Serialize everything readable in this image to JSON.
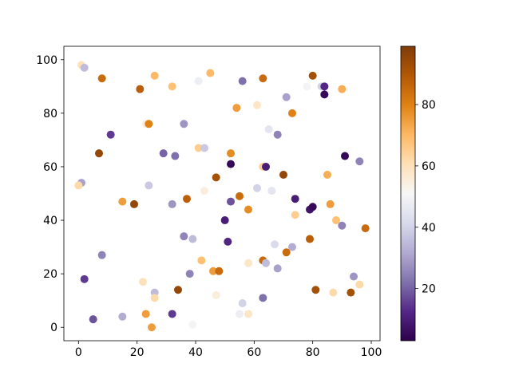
{
  "chart_data": {
    "type": "scatter",
    "title": "",
    "xlabel": "",
    "ylabel": "",
    "xlim": [
      -5,
      103
    ],
    "ylim": [
      -5,
      105
    ],
    "xticks": [
      0,
      20,
      40,
      60,
      80,
      100
    ],
    "yticks": [
      0,
      20,
      40,
      60,
      80,
      100
    ],
    "grid": false,
    "legend": "none",
    "colormap": "PuOr_r",
    "colorbar": {
      "range": [
        3,
        99
      ],
      "ticks": [
        20,
        40,
        60,
        80
      ],
      "placement": "right"
    },
    "points": [
      {
        "x": 1,
        "y": 98,
        "c": 60
      },
      {
        "x": 2,
        "y": 97,
        "c": 35
      },
      {
        "x": 8,
        "y": 93,
        "c": 85
      },
      {
        "x": 21,
        "y": 89,
        "c": 88
      },
      {
        "x": 26,
        "y": 94,
        "c": 70
      },
      {
        "x": 32,
        "y": 90,
        "c": 68
      },
      {
        "x": 41,
        "y": 92,
        "c": 48
      },
      {
        "x": 45,
        "y": 95,
        "c": 70
      },
      {
        "x": 56,
        "y": 92,
        "c": 22
      },
      {
        "x": 63,
        "y": 93,
        "c": 85
      },
      {
        "x": 54,
        "y": 82,
        "c": 75
      },
      {
        "x": 61,
        "y": 83,
        "c": 58
      },
      {
        "x": 71,
        "y": 86,
        "c": 30
      },
      {
        "x": 73,
        "y": 80,
        "c": 80
      },
      {
        "x": 78,
        "y": 90,
        "c": 50
      },
      {
        "x": 80,
        "y": 94,
        "c": 92
      },
      {
        "x": 83,
        "y": 90,
        "c": 40
      },
      {
        "x": 84,
        "y": 90,
        "c": 12
      },
      {
        "x": 84,
        "y": 87,
        "c": 5
      },
      {
        "x": 90,
        "y": 89,
        "c": 72
      },
      {
        "x": 11,
        "y": 72,
        "c": 15
      },
      {
        "x": 7,
        "y": 65,
        "c": 95
      },
      {
        "x": 23,
        "y": 76,
        "c": 55
      },
      {
        "x": 24,
        "y": 76,
        "c": 80
      },
      {
        "x": 36,
        "y": 76,
        "c": 28
      },
      {
        "x": 29,
        "y": 65,
        "c": 20
      },
      {
        "x": 33,
        "y": 64,
        "c": 22
      },
      {
        "x": 41,
        "y": 67,
        "c": 65
      },
      {
        "x": 43,
        "y": 67,
        "c": 38
      },
      {
        "x": 52,
        "y": 65,
        "c": 78
      },
      {
        "x": 52,
        "y": 61,
        "c": 5
      },
      {
        "x": 47,
        "y": 56,
        "c": 92
      },
      {
        "x": 65,
        "y": 74,
        "c": 45
      },
      {
        "x": 68,
        "y": 72,
        "c": 25
      },
      {
        "x": 63,
        "y": 60,
        "c": 65
      },
      {
        "x": 64,
        "y": 60,
        "c": 10
      },
      {
        "x": 70,
        "y": 57,
        "c": 95
      },
      {
        "x": 85,
        "y": 57,
        "c": 72
      },
      {
        "x": 91,
        "y": 64,
        "c": 5
      },
      {
        "x": 96,
        "y": 62,
        "c": 25
      },
      {
        "x": 1,
        "y": 54,
        "c": 30
      },
      {
        "x": 0,
        "y": 53,
        "c": 62
      },
      {
        "x": 24,
        "y": 53,
        "c": 38
      },
      {
        "x": 15,
        "y": 47,
        "c": 75
      },
      {
        "x": 19,
        "y": 46,
        "c": 95
      },
      {
        "x": 32,
        "y": 46,
        "c": 28
      },
      {
        "x": 37,
        "y": 48,
        "c": 88
      },
      {
        "x": 43,
        "y": 51,
        "c": 55
      },
      {
        "x": 52,
        "y": 47,
        "c": 18
      },
      {
        "x": 55,
        "y": 49,
        "c": 85
      },
      {
        "x": 58,
        "y": 44,
        "c": 78
      },
      {
        "x": 61,
        "y": 52,
        "c": 40
      },
      {
        "x": 66,
        "y": 51,
        "c": 45
      },
      {
        "x": 74,
        "y": 48,
        "c": 10
      },
      {
        "x": 79,
        "y": 44,
        "c": 8
      },
      {
        "x": 80,
        "y": 45,
        "c": 5
      },
      {
        "x": 86,
        "y": 46,
        "c": 75
      },
      {
        "x": 74,
        "y": 42,
        "c": 65
      },
      {
        "x": 88,
        "y": 40,
        "c": 68
      },
      {
        "x": 90,
        "y": 38,
        "c": 25
      },
      {
        "x": 98,
        "y": 37,
        "c": 85
      },
      {
        "x": 50,
        "y": 40,
        "c": 10
      },
      {
        "x": 51,
        "y": 32,
        "c": 12
      },
      {
        "x": 36,
        "y": 34,
        "c": 25
      },
      {
        "x": 39,
        "y": 33,
        "c": 35
      },
      {
        "x": 67,
        "y": 31,
        "c": 42
      },
      {
        "x": 73,
        "y": 30,
        "c": 32
      },
      {
        "x": 79,
        "y": 33,
        "c": 88
      },
      {
        "x": 71,
        "y": 28,
        "c": 85
      },
      {
        "x": 8,
        "y": 27,
        "c": 25
      },
      {
        "x": 2,
        "y": 18,
        "c": 15
      },
      {
        "x": 5,
        "y": 3,
        "c": 18
      },
      {
        "x": 15,
        "y": 4,
        "c": 32
      },
      {
        "x": 22,
        "y": 17,
        "c": 60
      },
      {
        "x": 26,
        "y": 13,
        "c": 35
      },
      {
        "x": 26,
        "y": 11,
        "c": 62
      },
      {
        "x": 23,
        "y": 5,
        "c": 75
      },
      {
        "x": 25,
        "y": 0,
        "c": 75
      },
      {
        "x": 32,
        "y": 5,
        "c": 15
      },
      {
        "x": 34,
        "y": 14,
        "c": 95
      },
      {
        "x": 38,
        "y": 20,
        "c": 25
      },
      {
        "x": 42,
        "y": 25,
        "c": 68
      },
      {
        "x": 46,
        "y": 21,
        "c": 75
      },
      {
        "x": 48,
        "y": 21,
        "c": 85
      },
      {
        "x": 47,
        "y": 12,
        "c": 55
      },
      {
        "x": 39,
        "y": 1,
        "c": 50
      },
      {
        "x": 55,
        "y": 5,
        "c": 48
      },
      {
        "x": 56,
        "y": 9,
        "c": 40
      },
      {
        "x": 58,
        "y": 5,
        "c": 58
      },
      {
        "x": 58,
        "y": 24,
        "c": 58
      },
      {
        "x": 63,
        "y": 25,
        "c": 85
      },
      {
        "x": 64,
        "y": 24,
        "c": 35
      },
      {
        "x": 68,
        "y": 22,
        "c": 30
      },
      {
        "x": 63,
        "y": 11,
        "c": 22
      },
      {
        "x": 81,
        "y": 14,
        "c": 92
      },
      {
        "x": 87,
        "y": 13,
        "c": 62
      },
      {
        "x": 93,
        "y": 13,
        "c": 92
      },
      {
        "x": 94,
        "y": 19,
        "c": 28
      },
      {
        "x": 96,
        "y": 16,
        "c": 62
      }
    ]
  }
}
